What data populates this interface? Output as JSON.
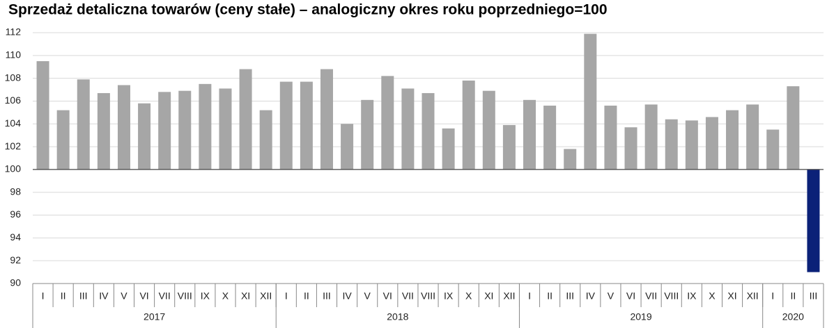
{
  "chart_data": {
    "type": "bar",
    "title": "Sprzedaż detaliczna towarów (ceny stałe) – analogiczny okres roku poprzedniego=100",
    "groups": [
      {
        "label": "2017",
        "categories": [
          "I",
          "II",
          "III",
          "IV",
          "V",
          "VI",
          "VII",
          "VIII",
          "IX",
          "X",
          "XI",
          "XII"
        ]
      },
      {
        "label": "2018",
        "categories": [
          "I",
          "II",
          "III",
          "IV",
          "V",
          "VI",
          "VII",
          "VIII",
          "IX",
          "X",
          "XI",
          "XII"
        ]
      },
      {
        "label": "2019",
        "categories": [
          "I",
          "II",
          "III",
          "IV",
          "V",
          "VI",
          "VII",
          "VIII",
          "IX",
          "X",
          "XI",
          "XII"
        ]
      },
      {
        "label": "2020",
        "categories": [
          "I",
          "II",
          "III"
        ]
      }
    ],
    "values": [
      109.5,
      105.2,
      107.9,
      106.7,
      107.4,
      105.8,
      106.8,
      106.9,
      107.5,
      107.1,
      108.8,
      105.2,
      107.7,
      107.7,
      108.8,
      104.0,
      106.1,
      108.2,
      107.1,
      106.7,
      103.6,
      107.8,
      106.9,
      103.9,
      106.1,
      105.6,
      101.8,
      111.9,
      105.6,
      103.7,
      105.7,
      104.4,
      104.3,
      104.6,
      105.2,
      105.7,
      103.5,
      107.3,
      91.0
    ],
    "colors": [
      "#a6a6a6",
      "#a6a6a6",
      "#a6a6a6",
      "#a6a6a6",
      "#a6a6a6",
      "#a6a6a6",
      "#a6a6a6",
      "#a6a6a6",
      "#a6a6a6",
      "#a6a6a6",
      "#a6a6a6",
      "#a6a6a6",
      "#a6a6a6",
      "#a6a6a6",
      "#a6a6a6",
      "#a6a6a6",
      "#a6a6a6",
      "#a6a6a6",
      "#a6a6a6",
      "#a6a6a6",
      "#a6a6a6",
      "#a6a6a6",
      "#a6a6a6",
      "#a6a6a6",
      "#a6a6a6",
      "#a6a6a6",
      "#a6a6a6",
      "#a6a6a6",
      "#a6a6a6",
      "#a6a6a6",
      "#a6a6a6",
      "#a6a6a6",
      "#a6a6a6",
      "#a6a6a6",
      "#a6a6a6",
      "#a6a6a6",
      "#a6a6a6",
      "#a6a6a6",
      "#0b2178"
    ],
    "baseline": 100,
    "ylim": [
      90,
      112
    ],
    "yticks": [
      90,
      92,
      94,
      96,
      98,
      100,
      102,
      104,
      106,
      108,
      110,
      112
    ],
    "grid": true
  }
}
